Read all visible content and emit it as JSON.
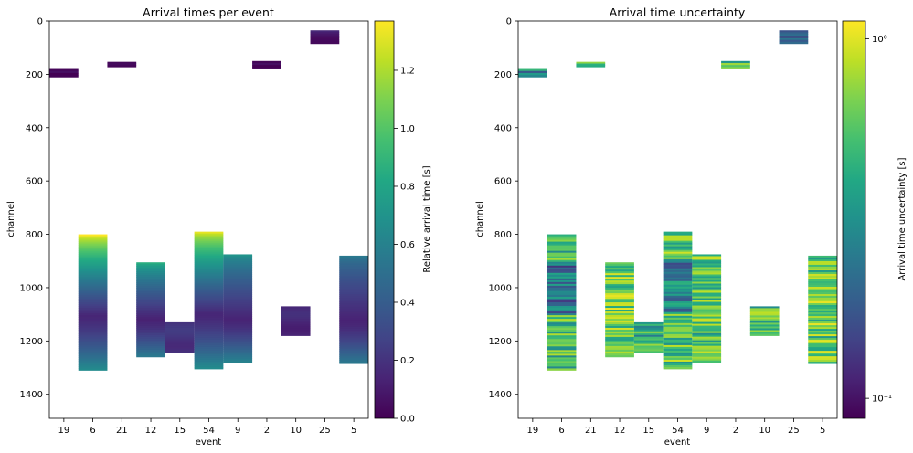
{
  "chart_data": [
    {
      "type": "heatmap",
      "title": "Arrival times per event",
      "xlabel": "event",
      "ylabel": "channel",
      "categories": [
        "19",
        "6",
        "21",
        "12",
        "15",
        "54",
        "9",
        "2",
        "10",
        "25",
        "5"
      ],
      "yticks": [
        "0",
        "200",
        "400",
        "600",
        "800",
        "1000",
        "1200",
        "1400"
      ],
      "ylim": [
        1490,
        0
      ],
      "y_inverted": true,
      "colorbar": {
        "label": "Relative arrival time [s]",
        "range": [
          0,
          1.37
        ],
        "ticks": [
          "0.0",
          "0.2",
          "0.4",
          "0.6",
          "0.8",
          "1.0",
          "1.2"
        ],
        "colormap": "viridis"
      },
      "blocks": [
        {
          "event": "19",
          "ymin": 180,
          "ymax": 210,
          "value_top": 0.02,
          "value_bottom": 0.02
        },
        {
          "event": "6",
          "ymin": 800,
          "ymax": 1310,
          "value_top": 1.37,
          "value_bottom": 0.65
        },
        {
          "event": "21",
          "ymin": 153,
          "ymax": 172,
          "value_top": 0.03,
          "value_bottom": 0.03
        },
        {
          "event": "12",
          "ymin": 905,
          "ymax": 1260,
          "value_top": 0.85,
          "value_bottom": 0.55
        },
        {
          "event": "15",
          "ymin": 1130,
          "ymax": 1245,
          "value_top": 0.2,
          "value_bottom": 0.2
        },
        {
          "event": "54",
          "ymin": 790,
          "ymax": 1305,
          "value_top": 1.32,
          "value_bottom": 0.65
        },
        {
          "event": "9",
          "ymin": 875,
          "ymax": 1280,
          "value_top": 0.7,
          "value_bottom": 0.6
        },
        {
          "event": "2",
          "ymin": 150,
          "ymax": 180,
          "value_top": 0.02,
          "value_bottom": 0.02
        },
        {
          "event": "10",
          "ymin": 1070,
          "ymax": 1180,
          "value_top": 0.15,
          "value_bottom": 0.15
        },
        {
          "event": "25",
          "ymin": 35,
          "ymax": 85,
          "value_top": 0.15,
          "value_bottom": 0.03
        },
        {
          "event": "5",
          "ymin": 880,
          "ymax": 1285,
          "value_top": 0.55,
          "value_bottom": 0.55
        }
      ]
    },
    {
      "type": "heatmap",
      "title": "Arrival time uncertainty",
      "xlabel": "event",
      "ylabel": "channel",
      "categories": [
        "19",
        "6",
        "21",
        "12",
        "15",
        "54",
        "9",
        "2",
        "10",
        "25",
        "5"
      ],
      "yticks": [
        "0",
        "200",
        "400",
        "600",
        "800",
        "1000",
        "1200",
        "1400"
      ],
      "ylim": [
        1490,
        0
      ],
      "y_inverted": true,
      "colorbar": {
        "label": "Arrival time uncertainty [s]",
        "range": [
          0.088,
          1.12
        ],
        "scale": "log",
        "ticks": [
          "10⁻¹",
          "10⁰"
        ],
        "colormap": "viridis"
      },
      "blocks": [
        {
          "event": "19",
          "ymin": 180,
          "ymax": 210,
          "value": 0.45
        },
        {
          "event": "6",
          "ymin": 800,
          "ymax": 1310,
          "value": 0.8
        },
        {
          "event": "21",
          "ymin": 153,
          "ymax": 172,
          "value": 0.7
        },
        {
          "event": "12",
          "ymin": 905,
          "ymax": 1260,
          "value": 0.95
        },
        {
          "event": "15",
          "ymin": 1130,
          "ymax": 1245,
          "value": 0.7
        },
        {
          "event": "54",
          "ymin": 790,
          "ymax": 1305,
          "value": 0.9
        },
        {
          "event": "9",
          "ymin": 875,
          "ymax": 1280,
          "value": 0.85
        },
        {
          "event": "2",
          "ymin": 150,
          "ymax": 180,
          "value": 0.75
        },
        {
          "event": "10",
          "ymin": 1070,
          "ymax": 1180,
          "value": 0.8
        },
        {
          "event": "25",
          "ymin": 35,
          "ymax": 85,
          "value": 0.3
        },
        {
          "event": "5",
          "ymin": 880,
          "ymax": 1285,
          "value": 0.95
        }
      ]
    }
  ]
}
